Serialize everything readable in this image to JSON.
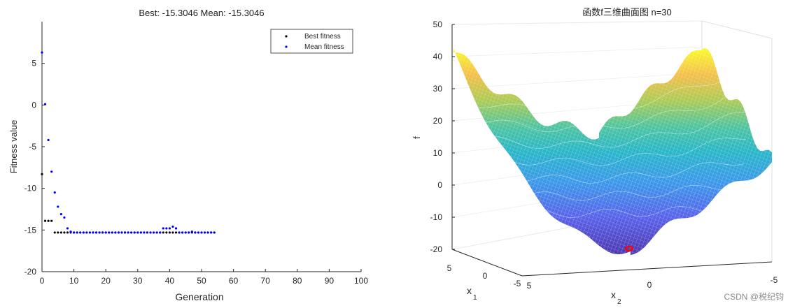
{
  "chart_data": [
    {
      "type": "scatter",
      "title": "Best: -15.3046 Mean: -15.3046",
      "xlabel": "Generation",
      "ylabel": "Fitness value",
      "xlim": [
        0,
        100
      ],
      "ylim": [
        -20,
        10
      ],
      "xticks": [
        "0",
        "10",
        "20",
        "30",
        "40",
        "50",
        "60",
        "70",
        "80",
        "90",
        "100"
      ],
      "yticks": [
        "5",
        "0",
        "-5",
        "-10",
        "-15",
        "-20"
      ],
      "legend_position": "top-right",
      "grid": false,
      "series": [
        {
          "name": "Best fitness",
          "color": "#000000",
          "x": [
            0,
            1,
            2,
            3,
            4,
            5,
            6,
            7,
            8,
            9,
            10,
            11,
            12,
            13,
            14,
            15,
            16,
            17,
            18,
            19,
            20,
            21,
            22,
            23,
            24,
            25,
            26,
            27,
            28,
            29,
            30,
            31,
            32,
            33,
            34,
            35,
            36,
            37,
            38,
            39,
            40,
            41,
            42,
            43,
            44,
            45,
            46,
            47,
            48,
            49,
            50,
            51,
            52,
            53,
            54
          ],
          "y": [
            -8.3,
            -13.9,
            -13.9,
            -13.9,
            -15.3,
            -15.3,
            -15.3,
            -15.3,
            -15.3,
            -15.3,
            -15.3,
            -15.3,
            -15.3,
            -15.3,
            -15.3,
            -15.3,
            -15.3,
            -15.3,
            -15.3,
            -15.3,
            -15.3,
            -15.3,
            -15.3,
            -15.3,
            -15.3,
            -15.3,
            -15.3,
            -15.3,
            -15.3,
            -15.3,
            -15.3,
            -15.3,
            -15.3,
            -15.3,
            -15.3,
            -15.3,
            -15.3,
            -15.3,
            -15.3,
            -15.3,
            -15.3,
            -15.3,
            -15.3,
            -15.3,
            -15.3,
            -15.3,
            -15.3,
            -15.3,
            -15.3,
            -15.3,
            -15.3,
            -15.3,
            -15.3,
            -15.3,
            -15.3
          ]
        },
        {
          "name": "Mean fitness",
          "color": "#0000ff",
          "x": [
            0,
            1,
            2,
            3,
            4,
            5,
            6,
            7,
            8,
            9,
            10,
            11,
            12,
            13,
            14,
            15,
            16,
            17,
            18,
            19,
            20,
            21,
            22,
            23,
            24,
            25,
            26,
            27,
            28,
            29,
            30,
            31,
            32,
            33,
            34,
            35,
            36,
            37,
            38,
            39,
            40,
            41,
            42,
            43,
            44,
            45,
            46,
            47,
            48,
            49,
            50,
            51,
            52,
            53,
            54
          ],
          "y": [
            6.3,
            0.1,
            -4.2,
            -8.0,
            -10.5,
            -12.2,
            -13.1,
            -13.5,
            -14.8,
            -15.2,
            -15.3,
            -15.3,
            -15.3,
            -15.3,
            -15.3,
            -15.3,
            -15.3,
            -15.3,
            -15.3,
            -15.3,
            -15.3,
            -15.3,
            -15.3,
            -15.3,
            -15.3,
            -15.3,
            -15.3,
            -15.3,
            -15.3,
            -15.3,
            -15.3,
            -15.3,
            -15.3,
            -15.3,
            -15.3,
            -15.3,
            -15.3,
            -15.3,
            -14.8,
            -14.8,
            -14.8,
            -14.6,
            -14.8,
            -15.3,
            -15.3,
            -15.3,
            -15.3,
            -15.2,
            -15.3,
            -15.3,
            -15.3,
            -15.3,
            -15.3,
            -15.3,
            -15.3
          ]
        }
      ]
    },
    {
      "type": "surface",
      "title": "函数f三维曲面图 n=30",
      "xlabel": "x",
      "xlabel_sub": "1",
      "ylabel": "x",
      "ylabel_sub": "2",
      "zlabel": "f",
      "zlim": [
        -20,
        50
      ],
      "zticks": [
        "50",
        "40",
        "30",
        "20",
        "10",
        "0",
        "-10",
        "-20"
      ],
      "x1ticks": [
        "5",
        "0",
        "-5"
      ],
      "x2ticks": [
        "5",
        "0",
        "-5"
      ],
      "colormap": "parula",
      "minimum_marker_color": "#ff0000"
    }
  ],
  "watermark": "CSDN @税纪钧"
}
